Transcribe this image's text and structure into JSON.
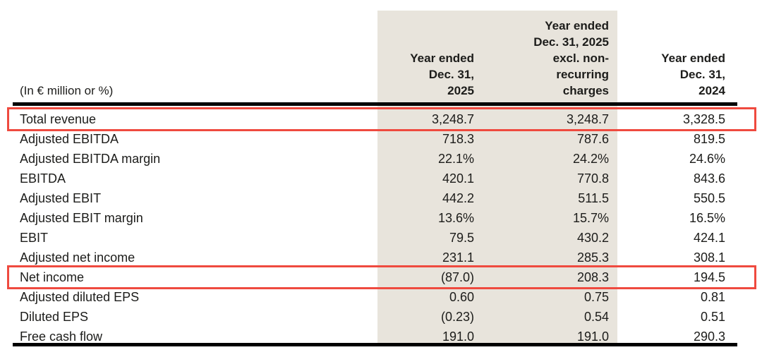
{
  "table": {
    "unit_label": "(In € million or %)",
    "columns": [
      {
        "id": "fy2025",
        "label": "Year ended\nDec. 31,\n2025"
      },
      {
        "id": "fy2025-excl",
        "label": "Year ended\nDec. 31, 2025\nexcl. non-\nrecurring\ncharges"
      },
      {
        "id": "fy2024",
        "label": "Year ended\nDec. 31,\n2024"
      }
    ],
    "rows": [
      {
        "label": "Total revenue",
        "values": [
          "3,248.7",
          "3,248.7",
          "3,328.5"
        ],
        "highlighted": true
      },
      {
        "label": "Adjusted EBITDA",
        "values": [
          "718.3",
          "787.6",
          "819.5"
        ],
        "highlighted": false
      },
      {
        "label": "Adjusted EBITDA margin",
        "values": [
          "22.1%",
          "24.2%",
          "24.6%"
        ],
        "highlighted": false
      },
      {
        "label": "EBITDA",
        "values": [
          "420.1",
          "770.8",
          "843.6"
        ],
        "highlighted": false
      },
      {
        "label": "Adjusted EBIT",
        "values": [
          "442.2",
          "511.5",
          "550.5"
        ],
        "highlighted": false
      },
      {
        "label": "Adjusted EBIT margin",
        "values": [
          "13.6%",
          "15.7%",
          "16.5%"
        ],
        "highlighted": false
      },
      {
        "label": "EBIT",
        "values": [
          "79.5",
          "430.2",
          "424.1"
        ],
        "highlighted": false
      },
      {
        "label": "Adjusted net income",
        "values": [
          "231.1",
          "285.3",
          "308.1"
        ],
        "highlighted": false
      },
      {
        "label": "Net income",
        "values": [
          "(87.0)",
          "208.3",
          "194.5"
        ],
        "highlighted": true
      },
      {
        "label": "Adjusted diluted EPS",
        "values": [
          "0.60",
          "0.75",
          "0.81"
        ],
        "highlighted": false
      },
      {
        "label": "Diluted EPS",
        "values": [
          "(0.23)",
          "0.54",
          "0.51"
        ],
        "highlighted": false
      },
      {
        "label": "Free cash flow",
        "values": [
          "191.0",
          "191.0",
          "290.3"
        ],
        "highlighted": false
      }
    ],
    "colors": {
      "column_shading": "#e8e4dc",
      "highlight_border": "#ef4a3f",
      "text": "#1c1c1a",
      "rule": "#000000"
    }
  }
}
